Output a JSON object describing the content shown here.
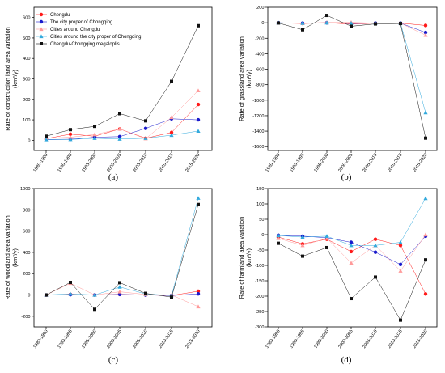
{
  "chart_data": [
    {
      "type": "line",
      "panel_label": "(a)",
      "ylabel": "Rate of construction land area variation",
      "yunit": "(km²/y)",
      "categories": [
        "1980-1990",
        "1990-1995",
        "1995-2000",
        "2000-2005",
        "2005-2010",
        "2010-2015",
        "2015-2020"
      ],
      "ylim": [
        -50,
        650
      ],
      "yticks": [
        0,
        100,
        200,
        300,
        400,
        500,
        600
      ],
      "legend": "top-left",
      "series": [
        {
          "name": "Chengdu",
          "values": [
            8,
            30,
            20,
            55,
            10,
            38,
            175
          ]
        },
        {
          "name": "The city proper of Chongqing",
          "values": [
            4,
            5,
            15,
            18,
            58,
            105,
            100
          ]
        },
        {
          "name": "Cities around Chengdu",
          "values": [
            10,
            15,
            28,
            55,
            8,
            112,
            243
          ]
        },
        {
          "name": "Cities around the city proper of Chongqing",
          "values": [
            3,
            4,
            10,
            6,
            10,
            25,
            45
          ]
        },
        {
          "name": "Chengdu-Chongqing megaloplis",
          "values": [
            20,
            52,
            68,
            130,
            95,
            288,
            560
          ]
        }
      ]
    },
    {
      "type": "line",
      "panel_label": "(b)",
      "ylabel": "Rate of grassland area variation",
      "yunit": "(km²/y)",
      "categories": [
        "1980-1990",
        "1990-1995",
        "1995-2000",
        "2000-2005",
        "2005-2010",
        "2010-2015",
        "2015-2020"
      ],
      "ylim": [
        -1650,
        200
      ],
      "yticks": [
        200,
        0,
        -200,
        -400,
        -600,
        -800,
        -1000,
        -1200,
        -1400,
        -1600
      ],
      "series": [
        {
          "name": "Chengdu",
          "values": [
            -2,
            -10,
            0,
            -18,
            -5,
            -5,
            -35
          ]
        },
        {
          "name": "The city proper of Chongqing",
          "values": [
            0,
            -5,
            0,
            -10,
            -5,
            -5,
            -125
          ]
        },
        {
          "name": "Cities around Chengdu",
          "values": [
            -2,
            -8,
            5,
            5,
            -5,
            -5,
            -160
          ]
        },
        {
          "name": "Cities around the city proper of Chongqing",
          "values": [
            0,
            -5,
            0,
            -5,
            -5,
            -5,
            -1160
          ]
        },
        {
          "name": "Chengdu-Chongqing megaloplis",
          "values": [
            -3,
            -90,
            95,
            -45,
            -15,
            -10,
            -1490
          ]
        }
      ]
    },
    {
      "type": "line",
      "panel_label": "(c)",
      "ylabel": "Rate of woodland area variation",
      "yunit": "(km²/y)",
      "categories": [
        "1980-1990",
        "1990-1995",
        "1995-2000",
        "2000-2005",
        "2005-2010",
        "2010-2015",
        "2015-2020"
      ],
      "ylim": [
        -300,
        1000
      ],
      "yticks": [
        -200,
        0,
        200,
        400,
        600,
        800,
        1000
      ],
      "series": [
        {
          "name": "Chengdu",
          "values": [
            0,
            5,
            0,
            5,
            0,
            -5,
            35
          ]
        },
        {
          "name": "The city proper of Chongqing",
          "values": [
            0,
            3,
            0,
            5,
            0,
            -5,
            10
          ]
        },
        {
          "name": "Cities around Chengdu",
          "values": [
            0,
            110,
            0,
            30,
            5,
            0,
            -110
          ]
        },
        {
          "name": "Cities around the city proper of Chongqing",
          "values": [
            0,
            10,
            0,
            75,
            10,
            -5,
            910
          ]
        },
        {
          "name": "Chengdu-Chongqing megaloplis",
          "values": [
            0,
            118,
            -135,
            115,
            15,
            -20,
            850
          ]
        }
      ]
    },
    {
      "type": "line",
      "panel_label": "(d)",
      "ylabel": "Rate of farmland area variation",
      "yunit": "(km²/y)",
      "categories": [
        "1980-1990",
        "1990-1995",
        "1995-2000",
        "2000-2005",
        "2005-2010",
        "2010-2015",
        "2015-2020"
      ],
      "ylim": [
        -300,
        150
      ],
      "yticks": [
        150,
        100,
        50,
        0,
        -50,
        -100,
        -150,
        -200,
        -250,
        -300
      ],
      "series": [
        {
          "name": "Chengdu",
          "values": [
            -8,
            -30,
            -15,
            -55,
            -15,
            -35,
            -193
          ]
        },
        {
          "name": "The city proper of Chongqing",
          "values": [
            -2,
            -5,
            -10,
            -25,
            -57,
            -97,
            -5
          ]
        },
        {
          "name": "Cities around Chengdu",
          "values": [
            -12,
            -35,
            -12,
            -92,
            -35,
            -118,
            0
          ]
        },
        {
          "name": "Cities around the city proper of Chongqing",
          "values": [
            -3,
            -8,
            -5,
            -35,
            -35,
            -25,
            118
          ]
        },
        {
          "name": "Chengdu-Chongqing megaloplis",
          "values": [
            -28,
            -70,
            -42,
            -208,
            -138,
            -278,
            -82
          ]
        }
      ]
    }
  ],
  "series_style": [
    {
      "marker": "circle",
      "color": "#ff1a1a"
    },
    {
      "marker": "circle",
      "color": "#1a1acc"
    },
    {
      "marker": "triangle",
      "color": "#ff9a9a"
    },
    {
      "marker": "triangle",
      "color": "#33aadd"
    },
    {
      "marker": "square",
      "color": "#111111"
    }
  ]
}
